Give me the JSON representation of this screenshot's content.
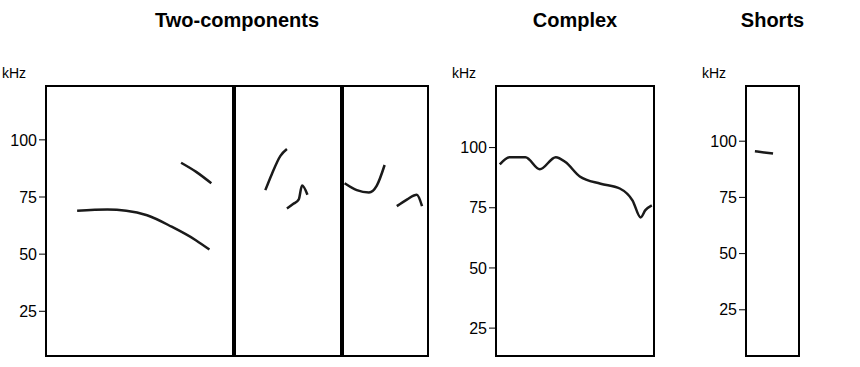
{
  "chart_data": [
    {
      "type": "line",
      "title": "Two-components",
      "y_label": "kHz",
      "ylim": [
        5,
        124
      ],
      "yticks": [
        25,
        50,
        75,
        100
      ],
      "grid": false,
      "tick_labels": "y",
      "panels": [
        {
          "xlim": [
            0,
            100
          ],
          "series": [
            {
              "color": "#1a1a1a",
              "x": [
                17,
                33,
                43,
                54,
                67,
                80,
                87
              ],
              "values": [
                69,
                69.5,
                69,
                67,
                62,
                56,
                52
              ]
            },
            {
              "color": "#1a1a1a",
              "x": [
                72,
                80,
                88
              ],
              "values": [
                90,
                86,
                81
              ]
            }
          ]
        },
        {
          "xlim": [
            0,
            100
          ],
          "series": [
            {
              "color": "#1a1a1a",
              "x": [
                29,
                35,
                43,
                49
              ],
              "values": [
                78,
                85,
                93,
                96
              ]
            },
            {
              "color": "#1a1a1a",
              "x": [
                49,
                55,
                60,
                63,
                68
              ],
              "values": [
                70,
                72,
                74,
                80,
                76
              ]
            }
          ]
        },
        {
          "xlim": [
            0,
            100
          ],
          "series": [
            {
              "color": "#1a1a1a",
              "x": [
                3,
                17,
                31,
                40,
                49
              ],
              "values": [
                81,
                78,
                77,
                80,
                89
              ]
            },
            {
              "color": "#1a1a1a",
              "x": [
                63,
                75,
                86,
                92
              ],
              "values": [
                71,
                74,
                76,
                71
              ]
            }
          ]
        }
      ]
    },
    {
      "type": "line",
      "title": "Complex",
      "y_label": "kHz",
      "ylim": [
        13,
        126
      ],
      "yticks": [
        25,
        50,
        75,
        100
      ],
      "grid": false,
      "tick_labels": "y",
      "panels": [
        {
          "xlim": [
            0,
            100
          ],
          "series": [
            {
              "color": "#1a1a1a",
              "x": [
                3,
                9,
                19,
                28,
                38,
                44,
                53,
                66,
                78,
                86,
                91,
                94,
                98
              ],
              "values": [
                93,
                96,
                96,
                91,
                96,
                94,
                88,
                85,
                83,
                78,
                71,
                74,
                76
              ]
            }
          ]
        }
      ]
    },
    {
      "type": "line",
      "title": "Shorts",
      "y_label": "kHz",
      "ylim": [
        4,
        125
      ],
      "yticks": [
        25,
        50,
        75,
        100
      ],
      "grid": false,
      "tick_labels": "y",
      "panels": [
        {
          "xlim": [
            0,
            100
          ],
          "series": [
            {
              "color": "#1a1a1a",
              "x": [
                18,
                35,
                51
              ],
              "values": [
                95.5,
                95,
                94.5
              ]
            }
          ]
        }
      ]
    }
  ]
}
